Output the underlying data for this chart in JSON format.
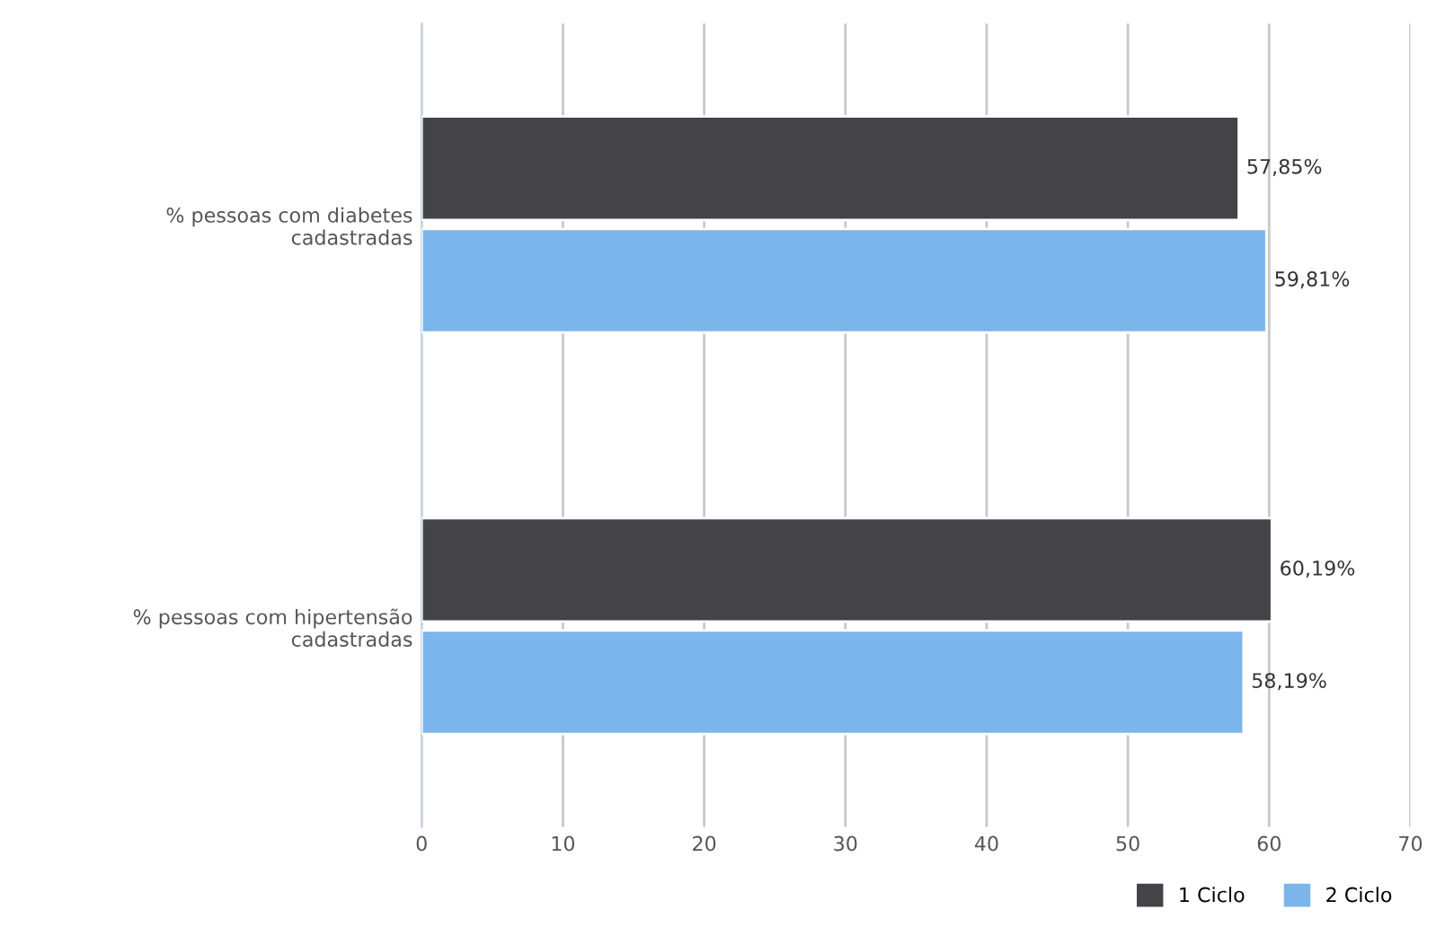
{
  "chart_data": {
    "type": "bar",
    "orientation": "horizontal",
    "categories": [
      "% pessoas com diabetes\ncadastradas",
      "% pessoas com hipertensão\ncadastradas"
    ],
    "series": [
      {
        "name": "1 Ciclo",
        "color": "#434348",
        "values": [
          57.85,
          60.19
        ],
        "value_labels": [
          "57,85%",
          "60,19%"
        ]
      },
      {
        "name": "2 Ciclo",
        "color": "#7cb5ec",
        "values": [
          59.81,
          58.19
        ],
        "value_labels": [
          "59,81%",
          "58,19%"
        ]
      }
    ],
    "xlim": [
      0,
      70
    ],
    "xticks": [
      0,
      10,
      20,
      30,
      40,
      50,
      60,
      70
    ],
    "grid": "x",
    "legend": "bottom right"
  }
}
